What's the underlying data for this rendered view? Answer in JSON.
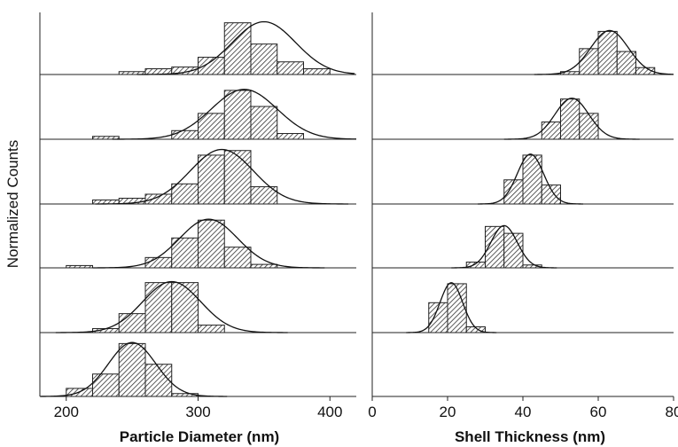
{
  "figure": {
    "ylabel": "Normalized Counts"
  },
  "chart_data": [
    {
      "type": "bar",
      "subtype": "stacked-histograms-with-gaussian-fits",
      "xlabel": "Particle Diameter (nm)",
      "ylabel": "Normalized Counts",
      "xlim": [
        180,
        420
      ],
      "xticks": [
        200,
        300,
        400
      ],
      "bin_width": 20,
      "panels": [
        {
          "bins": [
            250,
            270,
            290,
            310,
            330,
            350,
            370,
            390
          ],
          "values": [
            0.05,
            0.1,
            0.13,
            0.3,
            0.9,
            0.53,
            0.22,
            0.1
          ],
          "fit": {
            "mean": 350,
            "sd": 24
          }
        },
        {
          "bins": [
            230,
            290,
            310,
            330,
            350,
            370
          ],
          "values": [
            0.05,
            0.15,
            0.45,
            0.85,
            0.57,
            0.1
          ],
          "fit": {
            "mean": 335,
            "sd": 25
          }
        },
        {
          "bins": [
            230,
            250,
            270,
            290,
            310,
            330,
            350
          ],
          "values": [
            0.07,
            0.1,
            0.17,
            0.35,
            0.85,
            0.93,
            0.3
          ],
          "fit": {
            "mean": 318,
            "sd": 24
          }
        },
        {
          "bins": [
            210,
            270,
            290,
            310,
            330,
            350
          ],
          "values": [
            0.04,
            0.18,
            0.52,
            0.83,
            0.36,
            0.06
          ],
          "fit": {
            "mean": 308,
            "sd": 22
          }
        },
        {
          "bins": [
            230,
            250,
            270,
            290,
            310
          ],
          "values": [
            0.07,
            0.33,
            0.87,
            0.87,
            0.13
          ],
          "fit": {
            "mean": 280,
            "sd": 22
          }
        },
        {
          "bins": [
            210,
            230,
            250,
            270,
            290
          ],
          "values": [
            0.14,
            0.39,
            0.92,
            0.56,
            0.05
          ],
          "fit": {
            "mean": 250,
            "sd": 18
          }
        }
      ],
      "grid": false
    },
    {
      "type": "bar",
      "subtype": "stacked-histograms-with-gaussian-fits",
      "xlabel": "Shell Thickness (nm)",
      "xlim": [
        0,
        80
      ],
      "xticks": [
        0,
        20,
        40,
        60,
        80
      ],
      "bin_width": 5,
      "panels": [
        {
          "bins": [
            52.5,
            57.5,
            62.5,
            67.5,
            72.5
          ],
          "values": [
            0.05,
            0.45,
            0.75,
            0.4,
            0.12
          ],
          "fit": {
            "mean": 63,
            "sd": 5
          }
        },
        {
          "bins": [
            47.5,
            52.5,
            57.5
          ],
          "values": [
            0.3,
            0.7,
            0.45
          ],
          "fit": {
            "mean": 53,
            "sd": 4.5
          }
        },
        {
          "bins": [
            37.5,
            42.5,
            47.5
          ],
          "values": [
            0.42,
            0.85,
            0.33
          ],
          "fit": {
            "mean": 42,
            "sd": 3.5
          }
        },
        {
          "bins": [
            27.5,
            32.5,
            37.5,
            42.5
          ],
          "values": [
            0.1,
            0.72,
            0.6,
            0.05
          ],
          "fit": {
            "mean": 35,
            "sd": 3.5
          }
        },
        {
          "bins": [
            17.5,
            22.5,
            27.5
          ],
          "values": [
            0.52,
            0.85,
            0.1
          ],
          "fit": {
            "mean": 21,
            "sd": 3
          }
        },
        {
          "bins": [],
          "values": [],
          "fit": null
        }
      ],
      "grid": false
    }
  ]
}
